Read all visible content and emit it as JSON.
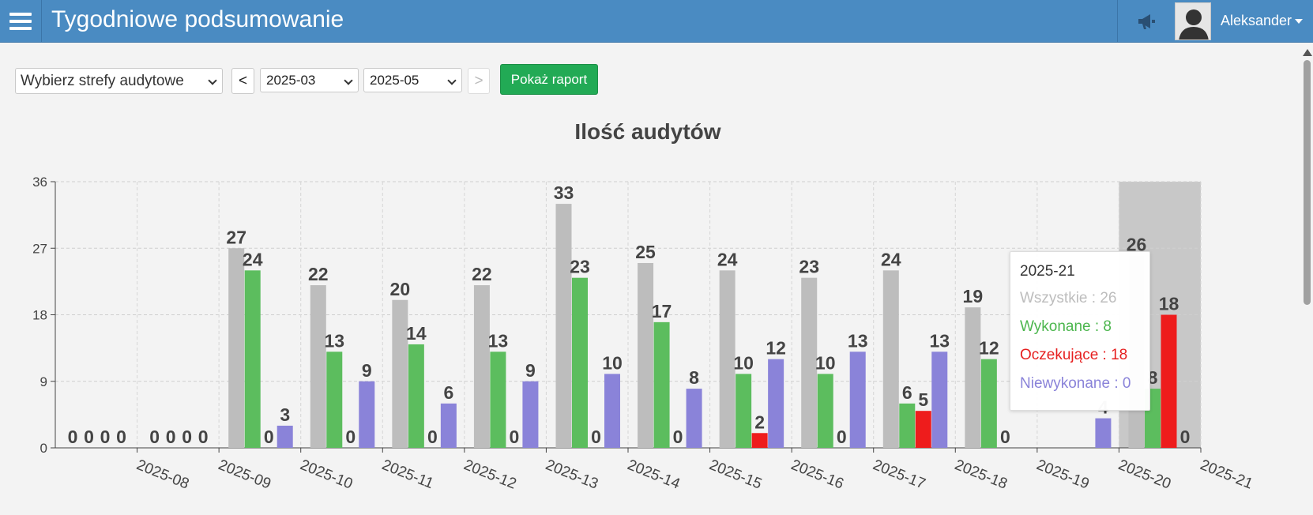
{
  "header": {
    "title": "Tygodniowe podsumowanie",
    "user": "Aleksander",
    "menu_icon": "hamburger-icon",
    "announce_icon": "megaphone-icon"
  },
  "filters": {
    "zones_label": "Wybierz strefy audytowe",
    "prev_label": "<",
    "next_label": ">",
    "date_from": "2025-03",
    "date_to": "2025-05",
    "show_report": "Pokaż raport"
  },
  "colors": {
    "header": "#4a8bc2",
    "all": "#bdbdbd",
    "done": "#5cbd5e",
    "pending": "#ee1c1c",
    "not_done": "#8a83d9",
    "button": "#22aa55"
  },
  "chart_data": {
    "type": "bar",
    "title": "Ilość audytów",
    "categories": [
      "2025-08",
      "2025-09",
      "2025-10",
      "2025-11",
      "2025-12",
      "2025-13",
      "2025-14",
      "2025-15",
      "2025-16",
      "2025-17",
      "2025-18",
      "2025-19",
      "2025-20",
      "2025-21"
    ],
    "ylim": [
      0,
      36
    ],
    "yticks": [
      0,
      9,
      18,
      27,
      36
    ],
    "grid": true,
    "highlighted_category": "2025-21",
    "series": [
      {
        "name": "Wszystkie",
        "color": "#bdbdbd",
        "values": [
          0,
          0,
          27,
          22,
          20,
          22,
          33,
          25,
          24,
          23,
          24,
          19,
          null,
          26
        ]
      },
      {
        "name": "Wykonane",
        "color": "#5cbd5e",
        "values": [
          0,
          0,
          24,
          13,
          14,
          13,
          23,
          17,
          10,
          10,
          6,
          12,
          null,
          8
        ]
      },
      {
        "name": "Oczekujące",
        "color": "#ee1c1c",
        "values": [
          0,
          0,
          0,
          0,
          0,
          0,
          0,
          0,
          2,
          0,
          5,
          0,
          null,
          18
        ]
      },
      {
        "name": "Niewykonane",
        "color": "#8a83d9",
        "values": [
          0,
          0,
          3,
          9,
          6,
          9,
          10,
          8,
          12,
          13,
          13,
          null,
          4,
          0
        ]
      }
    ]
  },
  "tooltip": {
    "title": "2025-21",
    "rows": [
      {
        "label": "Wszystkie : 26",
        "color": "#bdbdbd"
      },
      {
        "label": "Wykonane : 8",
        "color": "#5cbd5e"
      },
      {
        "label": "Oczekujące : 18",
        "color": "#ee1c1c"
      },
      {
        "label": "Niewykonane : 0",
        "color": "#8a83d9"
      }
    ]
  }
}
